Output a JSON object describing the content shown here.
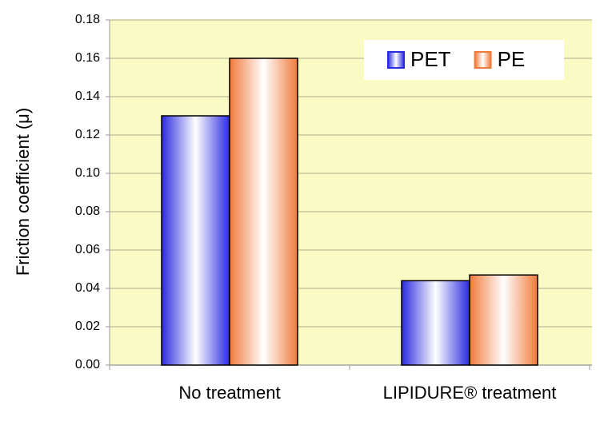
{
  "chart_data": {
    "type": "bar",
    "y_label": "Friction coefficient (μ)",
    "categories": [
      "No treatment",
      "LIPIDURE® treatment"
    ],
    "series": [
      {
        "name": "PET",
        "color": "#2a2ae0",
        "values": [
          0.13,
          0.044
        ]
      },
      {
        "name": "PE",
        "color": "#f07a3a",
        "values": [
          0.16,
          0.047
        ]
      }
    ],
    "ylim": [
      0,
      0.18
    ],
    "yticks": [
      {
        "value": 0,
        "label": "0.00"
      },
      0.02,
      0.04,
      0.06,
      0.08,
      {
        "value": 0.1,
        "label": "0.10"
      },
      0.12,
      0.14,
      0.16,
      0.18
    ],
    "grid": true,
    "legend": "upper right"
  }
}
